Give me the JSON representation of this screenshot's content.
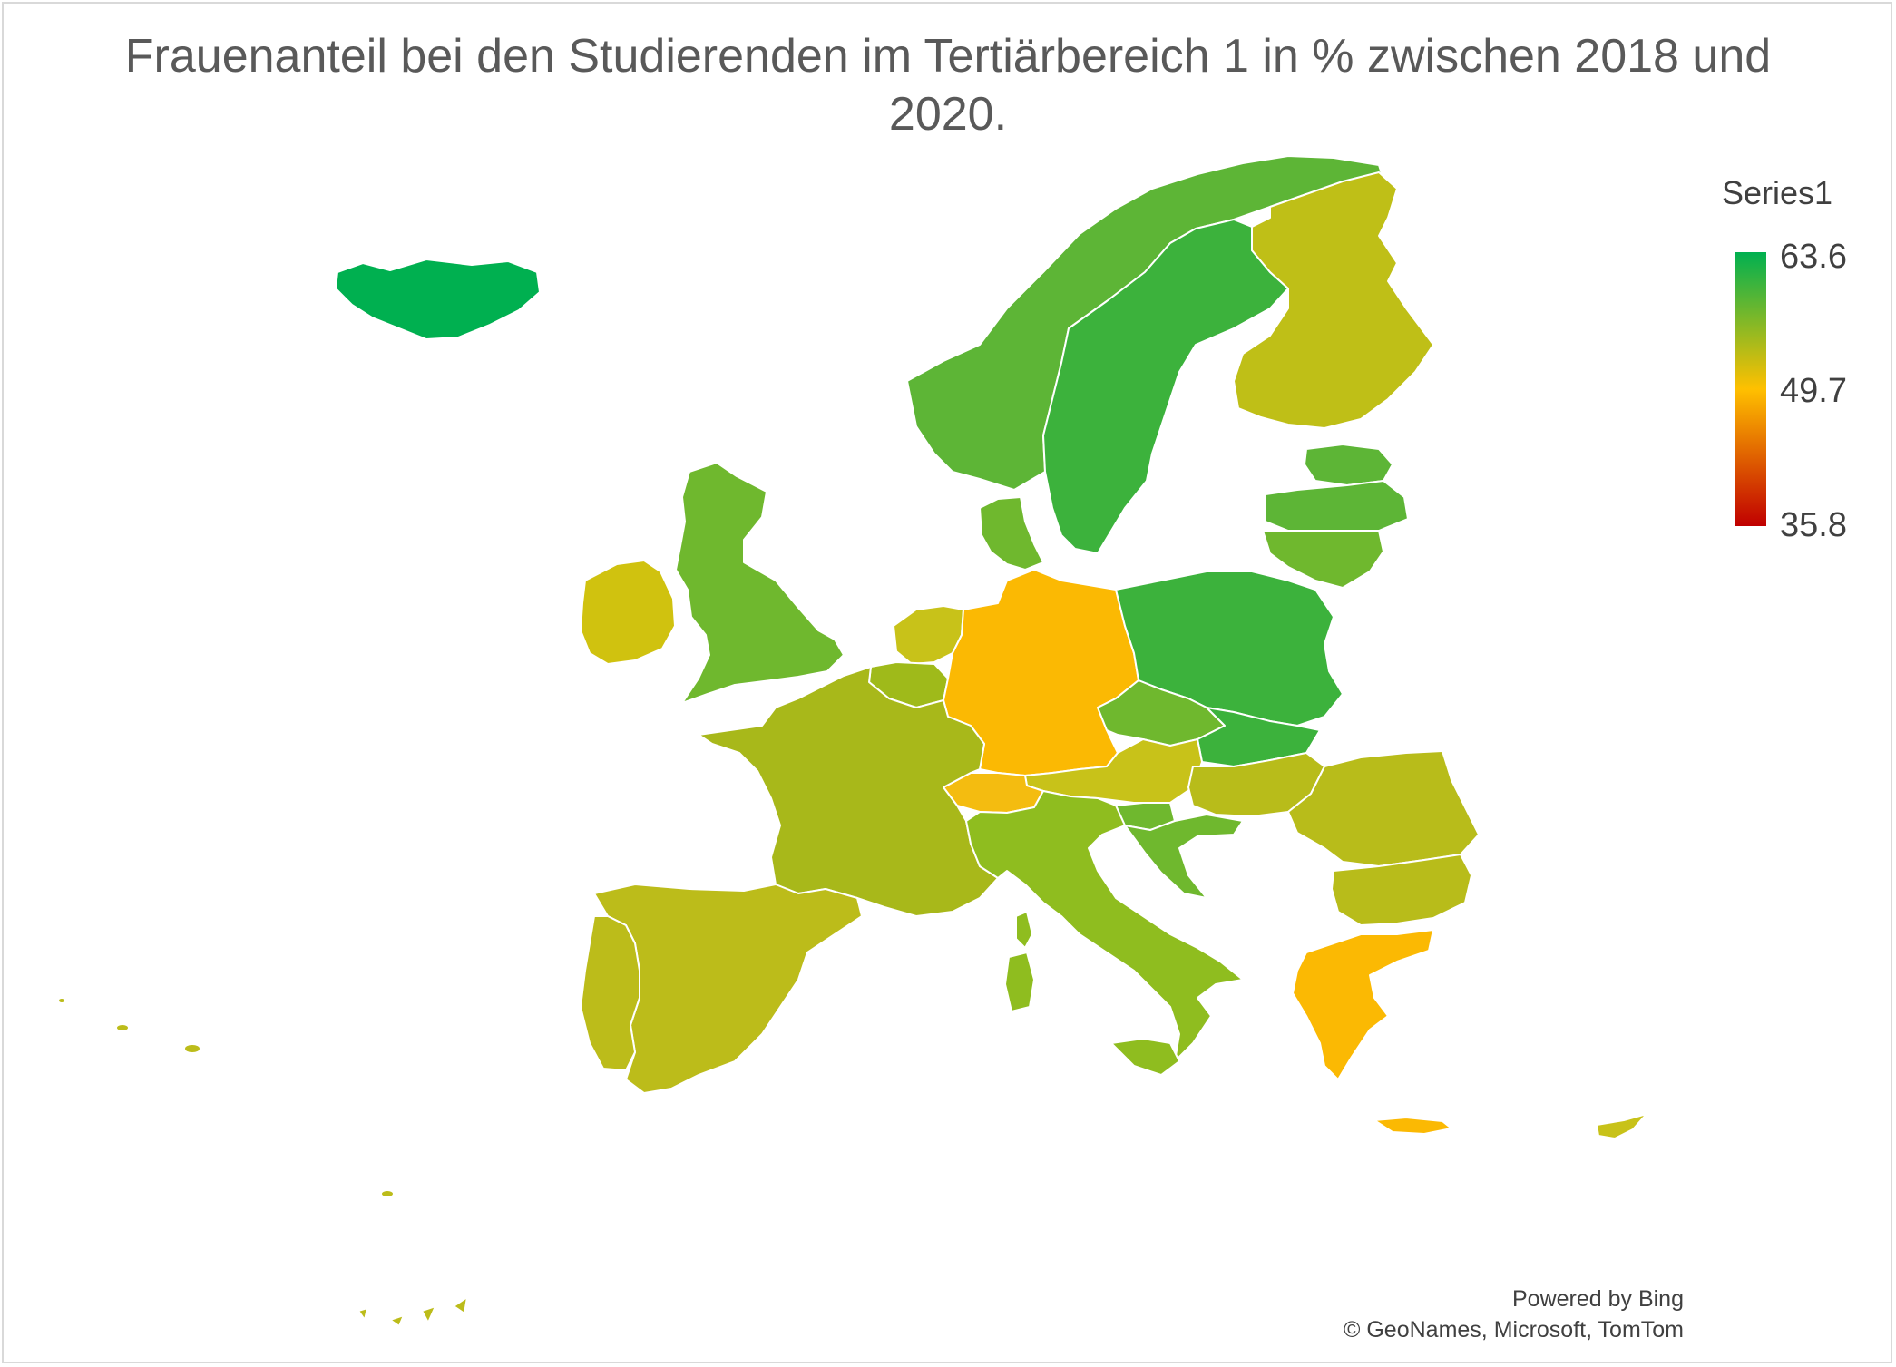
{
  "title": "Frauenanteil bei den Studierenden im Tertiärbereich 1 in % zwischen 2018 und 2020.",
  "legend": {
    "title": "Series1",
    "max": "63.6",
    "mid": "49.7",
    "min": "35.8",
    "colors": {
      "max": "#00b050",
      "mid": "#ffc000",
      "min": "#c00000"
    }
  },
  "credits": {
    "line1": "Powered by Bing",
    "line2": "© GeoNames, Microsoft, TomTom"
  },
  "map": {
    "type": "filled-choropleth",
    "scale": [
      35.8,
      63.6
    ]
  }
}
